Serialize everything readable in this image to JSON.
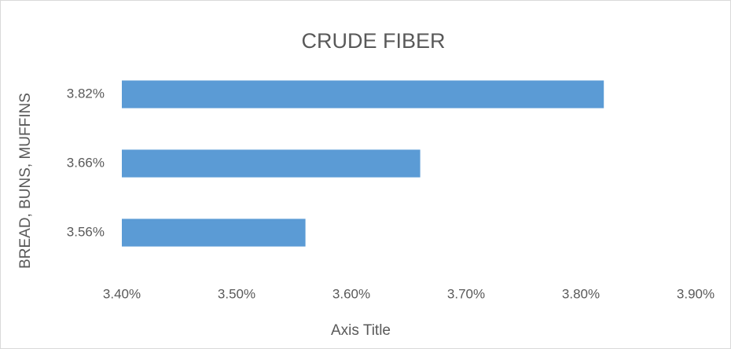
{
  "chart_data": {
    "type": "bar",
    "orientation": "horizontal",
    "title": "CRUDE FIBER",
    "x_label": "Axis Title",
    "y_label": "BREAD, BUNS, MUFFINS",
    "categories": [
      "3.82%",
      "3.66%",
      "3.56%"
    ],
    "values": [
      3.82,
      3.66,
      3.56
    ],
    "color": "#5b9bd5",
    "xlim": [
      3.4,
      3.9
    ],
    "xticks": [
      {
        "value": 3.4,
        "label": "3.40%"
      },
      {
        "value": 3.5,
        "label": "3.50%"
      },
      {
        "value": 3.6,
        "label": "3.60%"
      },
      {
        "value": 3.7,
        "label": "3.70%"
      },
      {
        "value": 3.8,
        "label": "3.80%"
      },
      {
        "value": 3.9,
        "label": "3.90%"
      }
    ],
    "grid": false
  }
}
